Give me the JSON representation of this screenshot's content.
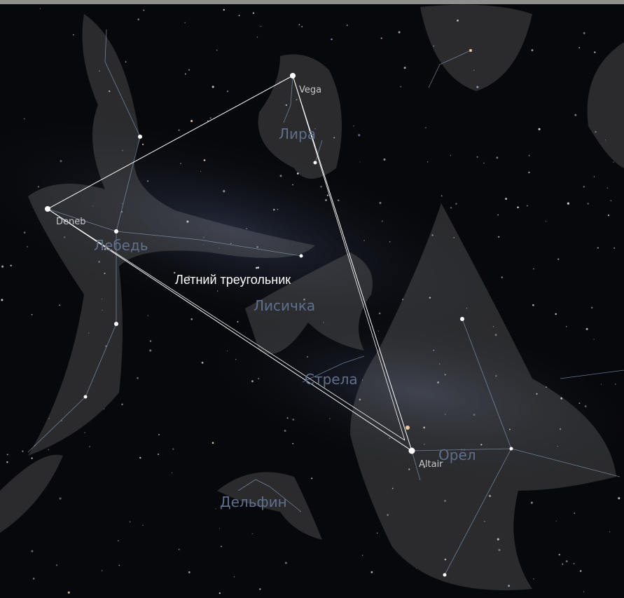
{
  "asterism": {
    "title": "Летний треугольник"
  },
  "stars": {
    "vega": "Vega",
    "deneb": "Deneb",
    "altair": "Altair"
  },
  "constellations": {
    "lyra": "Лира",
    "cygnus": "Лебедь",
    "vulpecula": "Лисичка",
    "sagitta": "Стрела",
    "aquila": "Орёл",
    "delphinus": "Дельфин"
  }
}
